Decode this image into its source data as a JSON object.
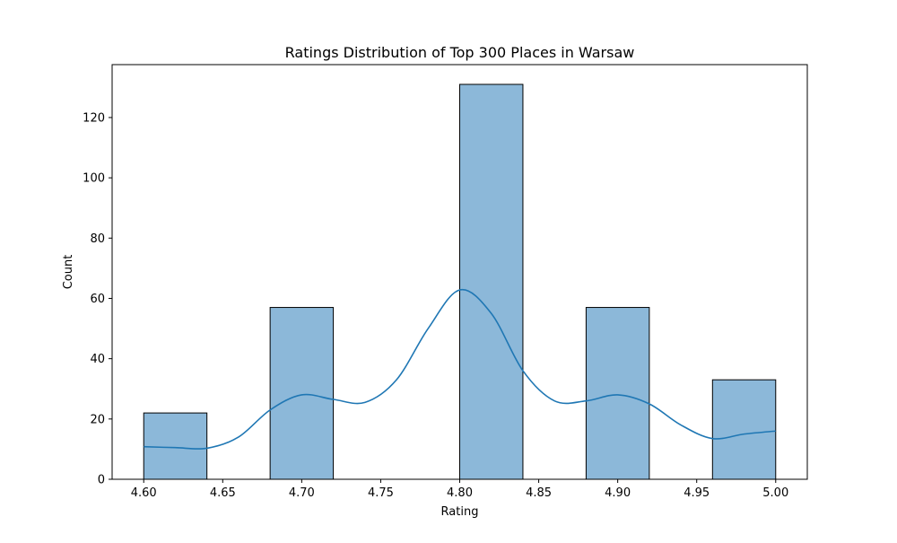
{
  "chart_data": {
    "type": "bar",
    "title": "Ratings Distribution of Top 300 Places in Warsaw",
    "xlabel": "Rating",
    "ylabel": "Count",
    "xlim": [
      4.58,
      5.02
    ],
    "ylim": [
      0,
      137.55
    ],
    "xticks": [
      4.6,
      4.65,
      4.7,
      4.75,
      4.8,
      4.85,
      4.9,
      4.95,
      5.0
    ],
    "xtick_labels": [
      "4.60",
      "4.65",
      "4.70",
      "4.75",
      "4.80",
      "4.85",
      "4.90",
      "4.95",
      "5.00"
    ],
    "yticks": [
      0,
      20,
      40,
      60,
      80,
      100,
      120
    ],
    "ytick_labels": [
      "0",
      "20",
      "40",
      "60",
      "80",
      "100",
      "120"
    ],
    "bins": [
      {
        "start": 4.6,
        "end": 4.64,
        "count": 22
      },
      {
        "start": 4.64,
        "end": 4.68,
        "count": 0
      },
      {
        "start": 4.68,
        "end": 4.72,
        "count": 57
      },
      {
        "start": 4.72,
        "end": 4.76,
        "count": 0
      },
      {
        "start": 4.76,
        "end": 4.8,
        "count": 0
      },
      {
        "start": 4.8,
        "end": 4.84,
        "count": 131
      },
      {
        "start": 4.84,
        "end": 4.88,
        "count": 0
      },
      {
        "start": 4.88,
        "end": 4.92,
        "count": 57
      },
      {
        "start": 4.92,
        "end": 4.96,
        "count": 0
      },
      {
        "start": 4.96,
        "end": 5.0,
        "count": 33
      }
    ],
    "kde": {
      "x": [
        4.6,
        4.62,
        4.64,
        4.66,
        4.68,
        4.7,
        4.72,
        4.74,
        4.76,
        4.78,
        4.8,
        4.82,
        4.84,
        4.86,
        4.88,
        4.9,
        4.92,
        4.94,
        4.96,
        4.98,
        5.0
      ],
      "y": [
        10.8,
        10.5,
        10.3,
        14,
        23,
        28,
        26.5,
        25.5,
        33,
        50,
        62.8,
        55,
        36,
        26,
        26,
        28,
        25,
        18,
        13.5,
        15,
        16
      ]
    },
    "bar_color": "#8cb8d9",
    "bar_edge_color": "#000000",
    "kde_color": "#1f77b4",
    "grid": false,
    "legend": "none"
  }
}
